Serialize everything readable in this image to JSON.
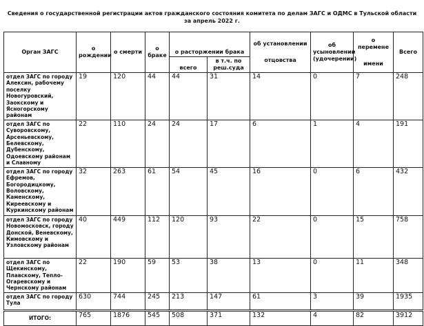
{
  "title_line1": "Сведения о государственной регистрации актов гражданского состояния комитета по делам ЗАГС и ОДМС в Тульской области",
  "title_line2": "за апрель 2022 г.",
  "headers": {
    "org": "Орган ЗАГС",
    "birth": "о рождении",
    "death": "о смерти",
    "marriage": "о браке",
    "divorce": "о расторжении брака",
    "divorce_total": "всего",
    "divorce_court": "в т.ч. по реш.суда",
    "paternity_top": "об установлении",
    "paternity_bottom": "отцовства",
    "adoption": "об усыновлении (удочерении)",
    "name_change_top": "о перемене",
    "name_change_bottom": "имени",
    "total": "Всего"
  },
  "rows": [
    {
      "org": "отдел ЗАГС по городу Алексин, рабочему поселку Новогуровский, Заокскому и Ясногорскому районам",
      "v": [
        "19",
        "120",
        "44",
        "44",
        "31",
        "14",
        "0",
        "7",
        "248"
      ]
    },
    {
      "org": "отдел ЗАГС по Суворовскому, Арсеньевскому, Белевскому, Дубенскому, Одоевскому районам и Славному",
      "v": [
        "22",
        "110",
        "24",
        "24",
        "17",
        "6",
        "1",
        "4",
        "191"
      ]
    },
    {
      "org": "отдел ЗАГС по городу Ефремов, Богородицкому, Воловскому, Каменскому, Киреевскому и Куркинскому районам",
      "v": [
        "32",
        "263",
        "61",
        "54",
        "45",
        "16",
        "0",
        "6",
        "432"
      ]
    },
    {
      "org": "отдел ЗАГС по городу Новомосковск, городу Донской, Веневскому, Кимовскому и Узловскому районам",
      "v": [
        "40",
        "449",
        "112",
        "120",
        "93",
        "22",
        "0",
        "15",
        "758"
      ]
    },
    {
      "org": "отдел ЗАГС по Щекинскому, Плавскому, Тепло-Огаревскому и Чернскому районам",
      "v": [
        "22",
        "190",
        "59",
        "53",
        "38",
        "13",
        "0",
        "11",
        "348"
      ]
    },
    {
      "org": "отдел ЗАГС по городу Тула",
      "v": [
        "630",
        "744",
        "245",
        "213",
        "147",
        "61",
        "3",
        "39",
        "1935"
      ]
    }
  ],
  "total": {
    "org": "ИТОГО:",
    "v": [
      "765",
      "1876",
      "545",
      "508",
      "371",
      "132",
      "4",
      "82",
      "3912"
    ]
  }
}
